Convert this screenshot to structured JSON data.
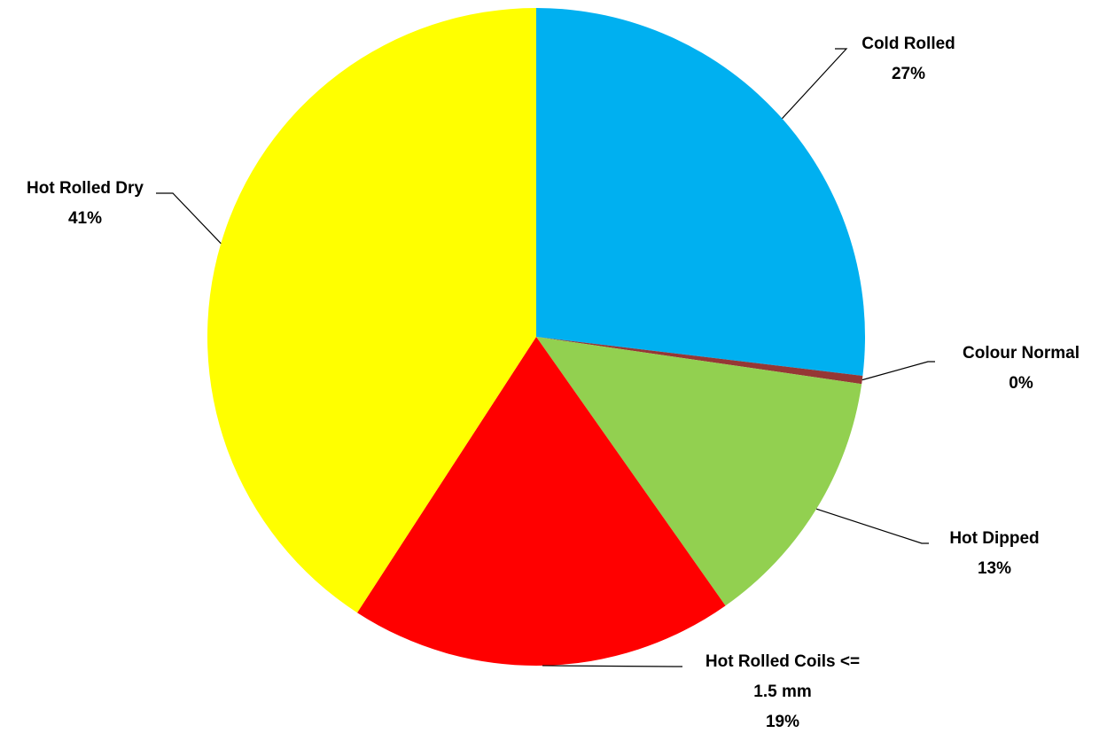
{
  "chart_data": {
    "type": "pie",
    "title": "",
    "start_angle_deg": 0,
    "direction": "clockwise",
    "slices": [
      {
        "name": "Cold Rolled",
        "value": 27,
        "label_lines": [
          "Cold Rolled",
          "27%"
        ],
        "color": "#00B0F0"
      },
      {
        "name": "Colour Normal",
        "value": 0.4,
        "label_lines": [
          "Colour Normal",
          "0%"
        ],
        "color": "#953735"
      },
      {
        "name": "Hot Dipped",
        "value": 13,
        "label_lines": [
          "Hot Dipped",
          "13%"
        ],
        "color": "#92D050"
      },
      {
        "name": "Hot Rolled Coils <= 1.5 mm",
        "value": 19,
        "label_lines": [
          "Hot Rolled Coils <=",
          "1.5 mm",
          "19%"
        ],
        "color": "#FF0000"
      },
      {
        "name": "Hot Rolled Dry",
        "value": 41,
        "label_lines": [
          "Hot Rolled Dry",
          "41%"
        ],
        "color": "#FFFF00"
      }
    ],
    "legend": "none",
    "data_labels": "outside with leader lines"
  }
}
